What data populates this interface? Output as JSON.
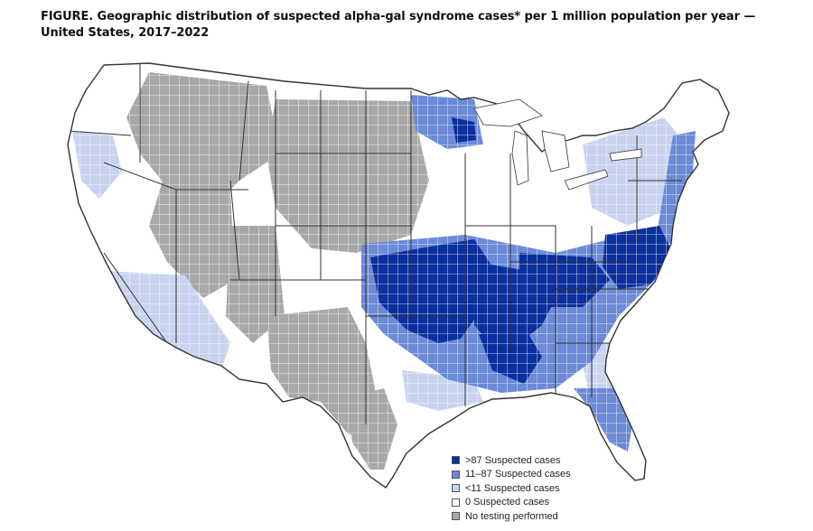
{
  "title": {
    "label": "FIGURE.",
    "text": "Geographic distribution of suspected alpha-gal syndrome cases* per 1 million population per year — United States, 2017–2022"
  },
  "legend": {
    "items": [
      {
        "label": ">87 Suspected cases",
        "color": "#0b2f9c"
      },
      {
        "label": "11–87 Suspected cases",
        "color": "#6c8ad6"
      },
      {
        "label": "<11 Suspected cases",
        "color": "#c8d3ef"
      },
      {
        "label": "0 Suspected cases",
        "color": "#ffffff"
      },
      {
        "label": "No testing performed",
        "color": "#a8a8a8"
      }
    ]
  },
  "colors": {
    "border": "#333333",
    "county_line": "#ffffff"
  }
}
